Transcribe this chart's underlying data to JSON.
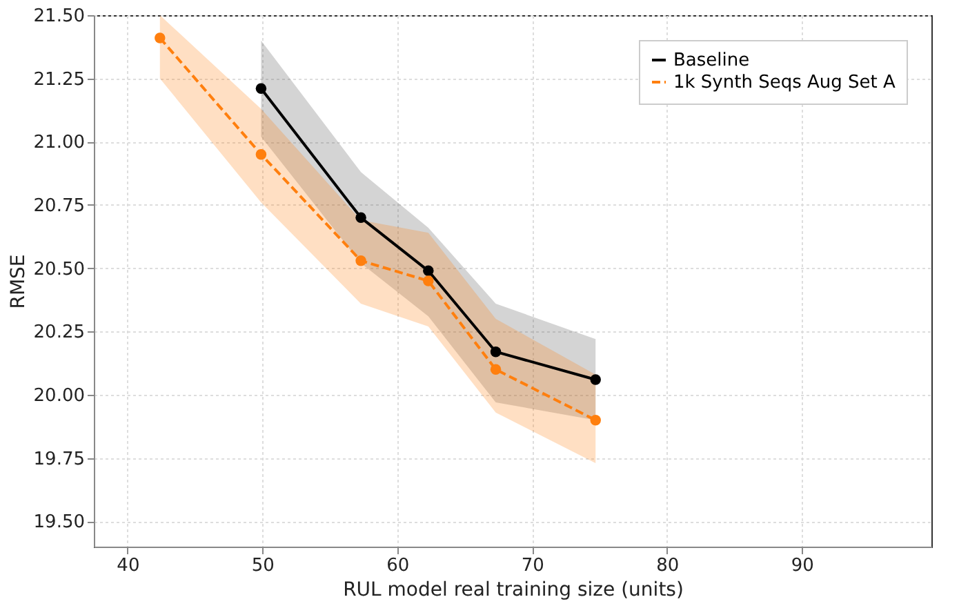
{
  "chart_data": {
    "type": "line",
    "xlabel": "RUL model real training size (units)",
    "ylabel": "RMSE",
    "xlim": [
      37.5,
      99.6
    ],
    "ylim": [
      19.4,
      21.5
    ],
    "xticks": [
      40,
      50,
      60,
      70,
      80,
      90
    ],
    "yticks": [
      {
        "value": 19.5,
        "label": "19.50"
      },
      19.75,
      {
        "value": 20,
        "label": "20.00"
      },
      20.25,
      {
        "value": 20.5,
        "label": "20.50"
      },
      20.75,
      {
        "value": 21,
        "label": "21.00"
      },
      21.25,
      {
        "value": 21.5,
        "label": "21.50"
      }
    ],
    "grid": true,
    "legend": "top right",
    "marker": "circle",
    "series": [
      {
        "name": "Baseline",
        "color": "#000000",
        "line_style": "solid",
        "x": [
          49.9,
          57.3,
          62.3,
          67.3,
          74.7
        ],
        "values": [
          21.21,
          20.7,
          20.49,
          20.17,
          20.06
        ],
        "lower": [
          21.02,
          20.52,
          20.31,
          19.97,
          19.9
        ],
        "upper": [
          21.4,
          20.88,
          20.66,
          20.36,
          20.22
        ]
      },
      {
        "name": "1k Synth Seqs Aug Set A",
        "color": "#ff7f0e",
        "line_style": "dashed",
        "x": [
          42.4,
          49.9,
          57.3,
          62.3,
          67.3,
          74.7
        ],
        "values": [
          21.41,
          20.95,
          20.53,
          20.45,
          20.1,
          19.9
        ],
        "lower": [
          21.25,
          20.76,
          20.36,
          20.27,
          19.93,
          19.73
        ],
        "upper": [
          21.5,
          21.13,
          20.69,
          20.64,
          20.3,
          20.08
        ]
      }
    ]
  }
}
